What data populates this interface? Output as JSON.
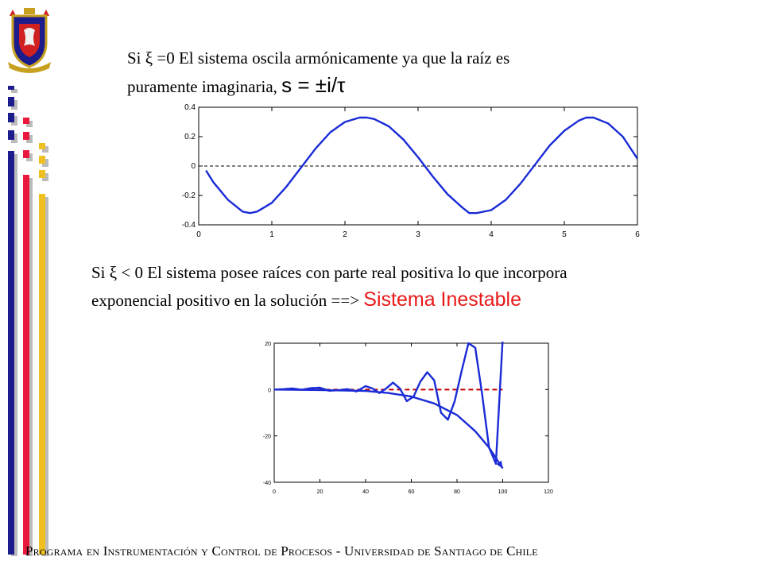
{
  "slide": {
    "line1": "Si ξ =0  El sistema oscila  armónicamente  ya que la raíz es",
    "line2_prefix": "puramente imaginaria, ",
    "line2_formula": "s = ±i/τ",
    "line3": "Si  ξ < 0  El sistema posee raíces con parte real positiva lo que incorpora",
    "line4_prefix": "exponencial positivo en la solución ==>  ",
    "line4_highlight": "Sistema Inestable",
    "footer": "Programa en Instrumentación y Control de Procesos - Universidad de Santiago de Chile"
  },
  "colors": {
    "curve": "#1a2bd6",
    "reference_line_top": "#000000",
    "reference_line_bottom": "#c00000",
    "highlight": "#e8191a",
    "bar_navy": "#1c1c8c",
    "bar_red": "#e8193c",
    "bar_yellow": "#f0c020"
  },
  "logo": {
    "icon": "university-crest-icon"
  },
  "chart_data": [
    {
      "type": "line",
      "xlim": [
        0,
        6
      ],
      "ylim": [
        -0.4,
        0.4
      ],
      "xticks": [
        "0",
        "1",
        "2",
        "3",
        "4",
        "5",
        "6"
      ],
      "yticks": [
        "0.4",
        "0.2",
        "0",
        "-0.2",
        "-0.4"
      ],
      "series": [
        {
          "x": [
            0.1,
            0.2,
            0.4,
            0.6,
            0.7,
            0.8,
            1.0,
            1.2,
            1.4,
            1.6,
            1.8,
            2.0,
            2.2,
            2.3,
            2.4,
            2.6,
            2.8,
            3.0,
            3.2,
            3.4,
            3.6,
            3.7,
            3.8,
            4.0,
            4.2,
            4.4,
            4.6,
            4.8,
            5.0,
            5.2,
            5.3,
            5.4,
            5.6,
            5.8,
            6.0
          ],
          "values": [
            -0.03,
            -0.11,
            -0.23,
            -0.31,
            -0.32,
            -0.31,
            -0.25,
            -0.14,
            -0.01,
            0.12,
            0.23,
            0.3,
            0.33,
            0.33,
            0.32,
            0.27,
            0.18,
            0.06,
            -0.07,
            -0.19,
            -0.28,
            -0.32,
            -0.32,
            -0.3,
            -0.23,
            -0.12,
            0.01,
            0.14,
            0.24,
            0.31,
            0.33,
            0.33,
            0.29,
            0.2,
            0.05
          ]
        }
      ],
      "reference_line": 0
    },
    {
      "type": "line",
      "xlim": [
        0,
        120
      ],
      "ylim": [
        -40,
        20
      ],
      "xticks": [
        "0",
        "20",
        "40",
        "60",
        "80",
        "100",
        "120"
      ],
      "yticks": [
        "20",
        "0",
        "-20",
        "-40"
      ],
      "series": [
        {
          "x": [
            0,
            4,
            8,
            12,
            16,
            20,
            24,
            28,
            32,
            36,
            40,
            43,
            46,
            49,
            52,
            55,
            58,
            61,
            64,
            67,
            70,
            73,
            76,
            79,
            82,
            85,
            88,
            91,
            94,
            97,
            100
          ],
          "values": [
            0,
            0.2,
            0.5,
            -0.1,
            0.6,
            0.8,
            -0.5,
            -0.3,
            0.2,
            -0.8,
            1.5,
            0.5,
            -1.5,
            0.5,
            3.0,
            0.5,
            -5.0,
            -3.0,
            3.5,
            7.5,
            4.0,
            -10.0,
            -13.0,
            -5.0,
            8.0,
            20.0,
            18.0,
            -2.0,
            -25.0,
            -32.0,
            22.0
          ]
        },
        {
          "x": [
            0,
            20,
            40,
            50,
            60,
            70,
            80,
            88,
            94,
            100
          ],
          "values": [
            0,
            -0.2,
            -0.6,
            -1.5,
            -3.0,
            -6.0,
            -11.0,
            -18.0,
            -25.0,
            -34.0
          ]
        }
      ],
      "reference_line": 0
    }
  ]
}
